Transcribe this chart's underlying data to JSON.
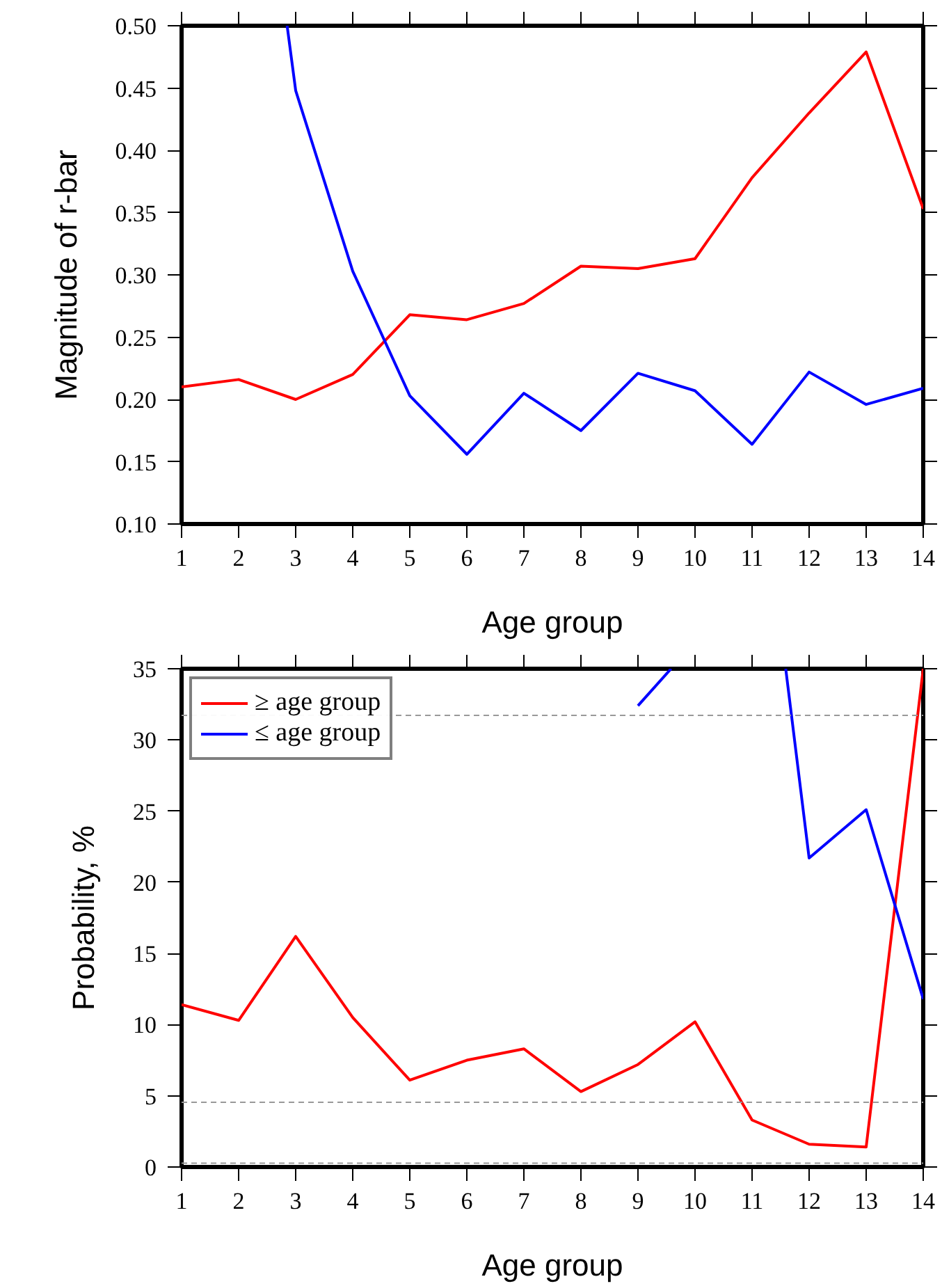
{
  "chart_data": [
    {
      "type": "line",
      "xlabel": "Age group",
      "ylabel": "Magnitude of r-bar",
      "x": [
        1,
        2,
        3,
        4,
        5,
        6,
        7,
        8,
        9,
        10,
        11,
        12,
        13,
        14
      ],
      "xlim": [
        1,
        14
      ],
      "xticks": [
        1,
        2,
        3,
        4,
        5,
        6,
        7,
        8,
        9,
        10,
        11,
        12,
        13,
        14
      ],
      "ylim": [
        0.1,
        0.5
      ],
      "yticks": [
        {
          "value": 0.1,
          "label": "0.10"
        },
        {
          "value": 0.15,
          "label": "0.15"
        },
        {
          "value": 0.2,
          "label": "0.20"
        },
        {
          "value": 0.25,
          "label": "0.25"
        },
        {
          "value": 0.3,
          "label": "0.30"
        },
        {
          "value": 0.35,
          "label": "0.35"
        },
        {
          "value": 0.4,
          "label": "0.40"
        },
        {
          "value": 0.45,
          "label": "0.45"
        },
        {
          "value": 0.5,
          "label": "0.50"
        }
      ],
      "grid": false,
      "legend": false,
      "line_style": "solid",
      "series": [
        {
          "color": "#ff0000",
          "values": [
            0.21,
            0.216,
            0.2,
            0.22,
            0.268,
            0.264,
            0.277,
            0.307,
            0.305,
            0.313,
            0.378,
            0.43,
            0.479,
            0.353
          ]
        },
        {
          "color": "#0000ff",
          "x": [
            2.85,
            3,
            4,
            5,
            6,
            7,
            8,
            9,
            10,
            11,
            12,
            13,
            14
          ],
          "values": [
            0.5,
            0.448,
            0.303,
            0.203,
            0.156,
            0.205,
            0.175,
            0.221,
            0.207,
            0.164,
            0.222,
            0.196,
            0.209
          ]
        }
      ]
    },
    {
      "type": "line",
      "xlabel": "Age group",
      "ylabel": "Probability, %",
      "x": [
        1,
        2,
        3,
        4,
        5,
        6,
        7,
        8,
        9,
        10,
        11,
        12,
        13,
        14
      ],
      "xlim": [
        1,
        14
      ],
      "xticks": [
        1,
        2,
        3,
        4,
        5,
        6,
        7,
        8,
        9,
        10,
        11,
        12,
        13,
        14
      ],
      "ylim": [
        0,
        35
      ],
      "yticks": [
        0,
        5,
        10,
        15,
        20,
        25,
        30,
        35
      ],
      "grid": false,
      "legend": "top left",
      "line_style": "solid",
      "series": [
        {
          "name": "≥ age group",
          "color": "#ff0000",
          "values": [
            11.4,
            10.3,
            16.2,
            10.5,
            6.1,
            7.5,
            8.3,
            5.3,
            7.2,
            10.2,
            3.3,
            1.6,
            1.4,
            35
          ]
        },
        {
          "name": "≤ age group",
          "color": "#0000ff",
          "x": [
            9,
            9.58,
            10,
            11.59,
            12,
            13,
            14
          ],
          "values": [
            32.4,
            35,
            null,
            35,
            21.7,
            25.1,
            11.8
          ]
        }
      ],
      "ref_lines": [
        {
          "axis": "y",
          "value": 31.73,
          "color": "#999999",
          "line_style": "dashed"
        },
        {
          "axis": "y",
          "value": 4.55,
          "color": "#999999",
          "line_style": "dashed"
        },
        {
          "axis": "y",
          "value": 0.27,
          "color": "#999999",
          "line_style": "dashed"
        }
      ]
    }
  ]
}
